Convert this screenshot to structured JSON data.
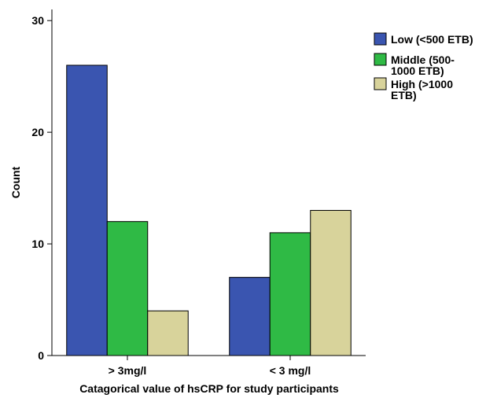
{
  "chart_data": {
    "type": "bar",
    "title": "",
    "xlabel": "Catagorical value of hsCRP for study participants",
    "ylabel": "Count",
    "categories": [
      "> 3mg/l",
      "< 3 mg/l"
    ],
    "series": [
      {
        "name": "Low (<500 ETB)",
        "legend_lines": [
          "Low (<500 ETB)"
        ],
        "color": "#3a55b0",
        "values": [
          26,
          7
        ]
      },
      {
        "name": "Middle (500-1000 ETB)",
        "legend_lines": [
          " Middle (500-",
          "1000 ETB)"
        ],
        "color": "#2fba45",
        "values": [
          12,
          11
        ]
      },
      {
        "name": "High (>1000 ETB)",
        "legend_lines": [
          " High (>1000",
          "ETB)"
        ],
        "color": "#d8d39b",
        "values": [
          4,
          13
        ]
      }
    ],
    "ylim": [
      0,
      31
    ],
    "yticks": [
      0,
      10,
      20,
      30
    ],
    "grid": false,
    "legend_position": "top-right"
  }
}
